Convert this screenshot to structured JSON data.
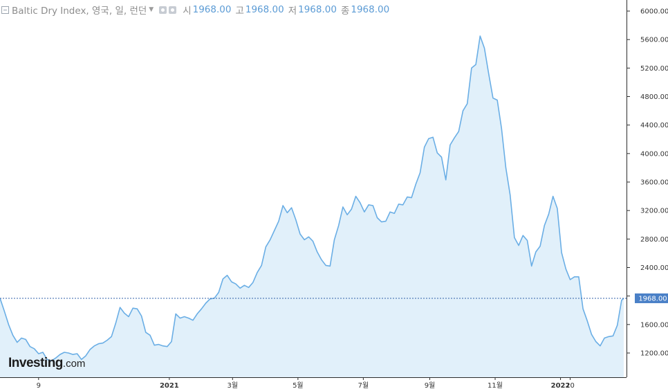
{
  "header": {
    "title": "Baltic Dry Index, 영국, 일, 런던",
    "dropdown_icon": "caret-down-icon",
    "open_label": "시",
    "open_value": "1968.00",
    "high_label": "고",
    "high_value": "1968.00",
    "low_label": "저",
    "low_value": "1968.00",
    "close_label": "종",
    "close_value": "1968.00"
  },
  "logo": {
    "brand": "Investing",
    "suffix": ".com"
  },
  "colors": {
    "line": "#6aaee5",
    "fill": "#e1f0fa",
    "current_badge": "#4a80c7",
    "axis_text": "#333333"
  },
  "chart_data": {
    "type": "area",
    "title": "Baltic Dry Index",
    "xlabel": "",
    "ylabel": "",
    "ylim": [
      1000,
      6100
    ],
    "yticks": [
      "6000.00",
      "5600.00",
      "5200.00",
      "4800.00",
      "4400.00",
      "4000.00",
      "3600.00",
      "3200.00",
      "2800.00",
      "2400.00",
      "2000.00",
      "1600.00",
      "1200.00"
    ],
    "xticks": [
      {
        "label": "9",
        "x": "2020-09-01"
      },
      {
        "label": "2021",
        "x": "2021-01-01"
      },
      {
        "label": "3월",
        "x": "2021-03-01"
      },
      {
        "label": "5월",
        "x": "2021-05-01"
      },
      {
        "label": "7월",
        "x": "2021-07-01"
      },
      {
        "label": "9월",
        "x": "2021-09-01"
      },
      {
        "label": "11월",
        "x": "2021-11-01"
      },
      {
        "label": "2022",
        "x": "2022-01-01"
      },
      {
        "label": "10",
        "x": "2022-01-10"
      }
    ],
    "current_value": "1968.00",
    "grid": false,
    "series": [
      {
        "values": [
          [
            "2020-07-27",
            1970
          ],
          [
            "2020-07-31",
            1790
          ],
          [
            "2020-08-04",
            1600
          ],
          [
            "2020-08-08",
            1450
          ],
          [
            "2020-08-12",
            1350
          ],
          [
            "2020-08-16",
            1410
          ],
          [
            "2020-08-20",
            1390
          ],
          [
            "2020-08-24",
            1290
          ],
          [
            "2020-08-28",
            1260
          ],
          [
            "2020-09-01",
            1190
          ],
          [
            "2020-09-05",
            1210
          ],
          [
            "2020-09-09",
            1110
          ],
          [
            "2020-09-13",
            1090
          ],
          [
            "2020-09-17",
            1130
          ],
          [
            "2020-09-21",
            1180
          ],
          [
            "2020-09-25",
            1210
          ],
          [
            "2020-09-29",
            1200
          ],
          [
            "2020-10-03",
            1180
          ],
          [
            "2020-10-07",
            1190
          ],
          [
            "2020-10-11",
            1110
          ],
          [
            "2020-10-15",
            1160
          ],
          [
            "2020-10-19",
            1250
          ],
          [
            "2020-10-23",
            1300
          ],
          [
            "2020-10-27",
            1330
          ],
          [
            "2020-10-31",
            1340
          ],
          [
            "2020-11-04",
            1380
          ],
          [
            "2020-11-08",
            1430
          ],
          [
            "2020-11-12",
            1620
          ],
          [
            "2020-11-16",
            1840
          ],
          [
            "2020-11-20",
            1760
          ],
          [
            "2020-11-24",
            1710
          ],
          [
            "2020-11-28",
            1830
          ],
          [
            "2020-12-02",
            1820
          ],
          [
            "2020-12-06",
            1720
          ],
          [
            "2020-12-10",
            1490
          ],
          [
            "2020-12-14",
            1450
          ],
          [
            "2020-12-18",
            1310
          ],
          [
            "2020-12-22",
            1320
          ],
          [
            "2020-12-26",
            1300
          ],
          [
            "2020-12-30",
            1290
          ],
          [
            "2021-01-03",
            1360
          ],
          [
            "2021-01-07",
            1750
          ],
          [
            "2021-01-11",
            1690
          ],
          [
            "2021-01-15",
            1710
          ],
          [
            "2021-01-19",
            1690
          ],
          [
            "2021-01-23",
            1660
          ],
          [
            "2021-01-27",
            1750
          ],
          [
            "2021-01-31",
            1820
          ],
          [
            "2021-02-04",
            1900
          ],
          [
            "2021-02-08",
            1960
          ],
          [
            "2021-02-12",
            1970
          ],
          [
            "2021-02-16",
            2050
          ],
          [
            "2021-02-20",
            2240
          ],
          [
            "2021-02-24",
            2290
          ],
          [
            "2021-02-28",
            2200
          ],
          [
            "2021-03-04",
            2170
          ],
          [
            "2021-03-08",
            2110
          ],
          [
            "2021-03-12",
            2150
          ],
          [
            "2021-03-16",
            2120
          ],
          [
            "2021-03-20",
            2190
          ],
          [
            "2021-03-24",
            2330
          ],
          [
            "2021-03-28",
            2430
          ],
          [
            "2021-04-01",
            2690
          ],
          [
            "2021-04-05",
            2790
          ],
          [
            "2021-04-09",
            2920
          ],
          [
            "2021-04-13",
            3050
          ],
          [
            "2021-04-17",
            3270
          ],
          [
            "2021-04-21",
            3170
          ],
          [
            "2021-04-25",
            3240
          ],
          [
            "2021-04-29",
            3070
          ],
          [
            "2021-05-03",
            2870
          ],
          [
            "2021-05-07",
            2790
          ],
          [
            "2021-05-11",
            2830
          ],
          [
            "2021-05-15",
            2770
          ],
          [
            "2021-05-19",
            2620
          ],
          [
            "2021-05-23",
            2510
          ],
          [
            "2021-05-27",
            2430
          ],
          [
            "2021-05-31",
            2420
          ],
          [
            "2021-06-04",
            2790
          ],
          [
            "2021-06-08",
            2990
          ],
          [
            "2021-06-12",
            3250
          ],
          [
            "2021-06-16",
            3140
          ],
          [
            "2021-06-20",
            3220
          ],
          [
            "2021-06-24",
            3400
          ],
          [
            "2021-06-28",
            3310
          ],
          [
            "2021-07-02",
            3180
          ],
          [
            "2021-07-06",
            3280
          ],
          [
            "2021-07-10",
            3270
          ],
          [
            "2021-07-14",
            3100
          ],
          [
            "2021-07-18",
            3040
          ],
          [
            "2021-07-22",
            3050
          ],
          [
            "2021-07-26",
            3180
          ],
          [
            "2021-07-30",
            3160
          ],
          [
            "2021-08-03",
            3290
          ],
          [
            "2021-08-07",
            3280
          ],
          [
            "2021-08-11",
            3390
          ],
          [
            "2021-08-15",
            3380
          ],
          [
            "2021-08-19",
            3570
          ],
          [
            "2021-08-23",
            3730
          ],
          [
            "2021-08-27",
            4090
          ],
          [
            "2021-08-31",
            4210
          ],
          [
            "2021-09-04",
            4230
          ],
          [
            "2021-09-08",
            4010
          ],
          [
            "2021-09-12",
            3950
          ],
          [
            "2021-09-16",
            3630
          ],
          [
            "2021-09-20",
            4120
          ],
          [
            "2021-09-24",
            4220
          ],
          [
            "2021-09-28",
            4310
          ],
          [
            "2021-10-02",
            4600
          ],
          [
            "2021-10-06",
            4700
          ],
          [
            "2021-10-10",
            5200
          ],
          [
            "2021-10-14",
            5250
          ],
          [
            "2021-10-18",
            5650
          ],
          [
            "2021-10-22",
            5480
          ],
          [
            "2021-10-26",
            5120
          ],
          [
            "2021-10-30",
            4780
          ],
          [
            "2021-11-03",
            4750
          ],
          [
            "2021-11-07",
            4350
          ],
          [
            "2021-11-11",
            3800
          ],
          [
            "2021-11-15",
            3420
          ],
          [
            "2021-11-19",
            2820
          ],
          [
            "2021-11-23",
            2710
          ],
          [
            "2021-11-27",
            2850
          ],
          [
            "2021-12-01",
            2780
          ],
          [
            "2021-12-05",
            2420
          ],
          [
            "2021-12-09",
            2620
          ],
          [
            "2021-12-13",
            2700
          ],
          [
            "2021-12-17",
            2990
          ],
          [
            "2021-12-21",
            3150
          ],
          [
            "2021-12-25",
            3400
          ],
          [
            "2021-12-29",
            3230
          ],
          [
            "2022-01-02",
            2610
          ],
          [
            "2022-01-06",
            2380
          ],
          [
            "2022-01-10",
            2230
          ],
          [
            "2022-01-14",
            2270
          ],
          [
            "2022-01-18",
            2270
          ],
          [
            "2022-01-22",
            1820
          ],
          [
            "2022-01-26",
            1650
          ],
          [
            "2022-01-30",
            1460
          ],
          [
            "2022-02-03",
            1360
          ],
          [
            "2022-02-07",
            1300
          ],
          [
            "2022-02-11",
            1410
          ],
          [
            "2022-02-15",
            1430
          ],
          [
            "2022-02-19",
            1440
          ],
          [
            "2022-02-23",
            1590
          ],
          [
            "2022-02-27",
            1940
          ],
          [
            "2022-03-01",
            1968
          ]
        ]
      }
    ]
  }
}
